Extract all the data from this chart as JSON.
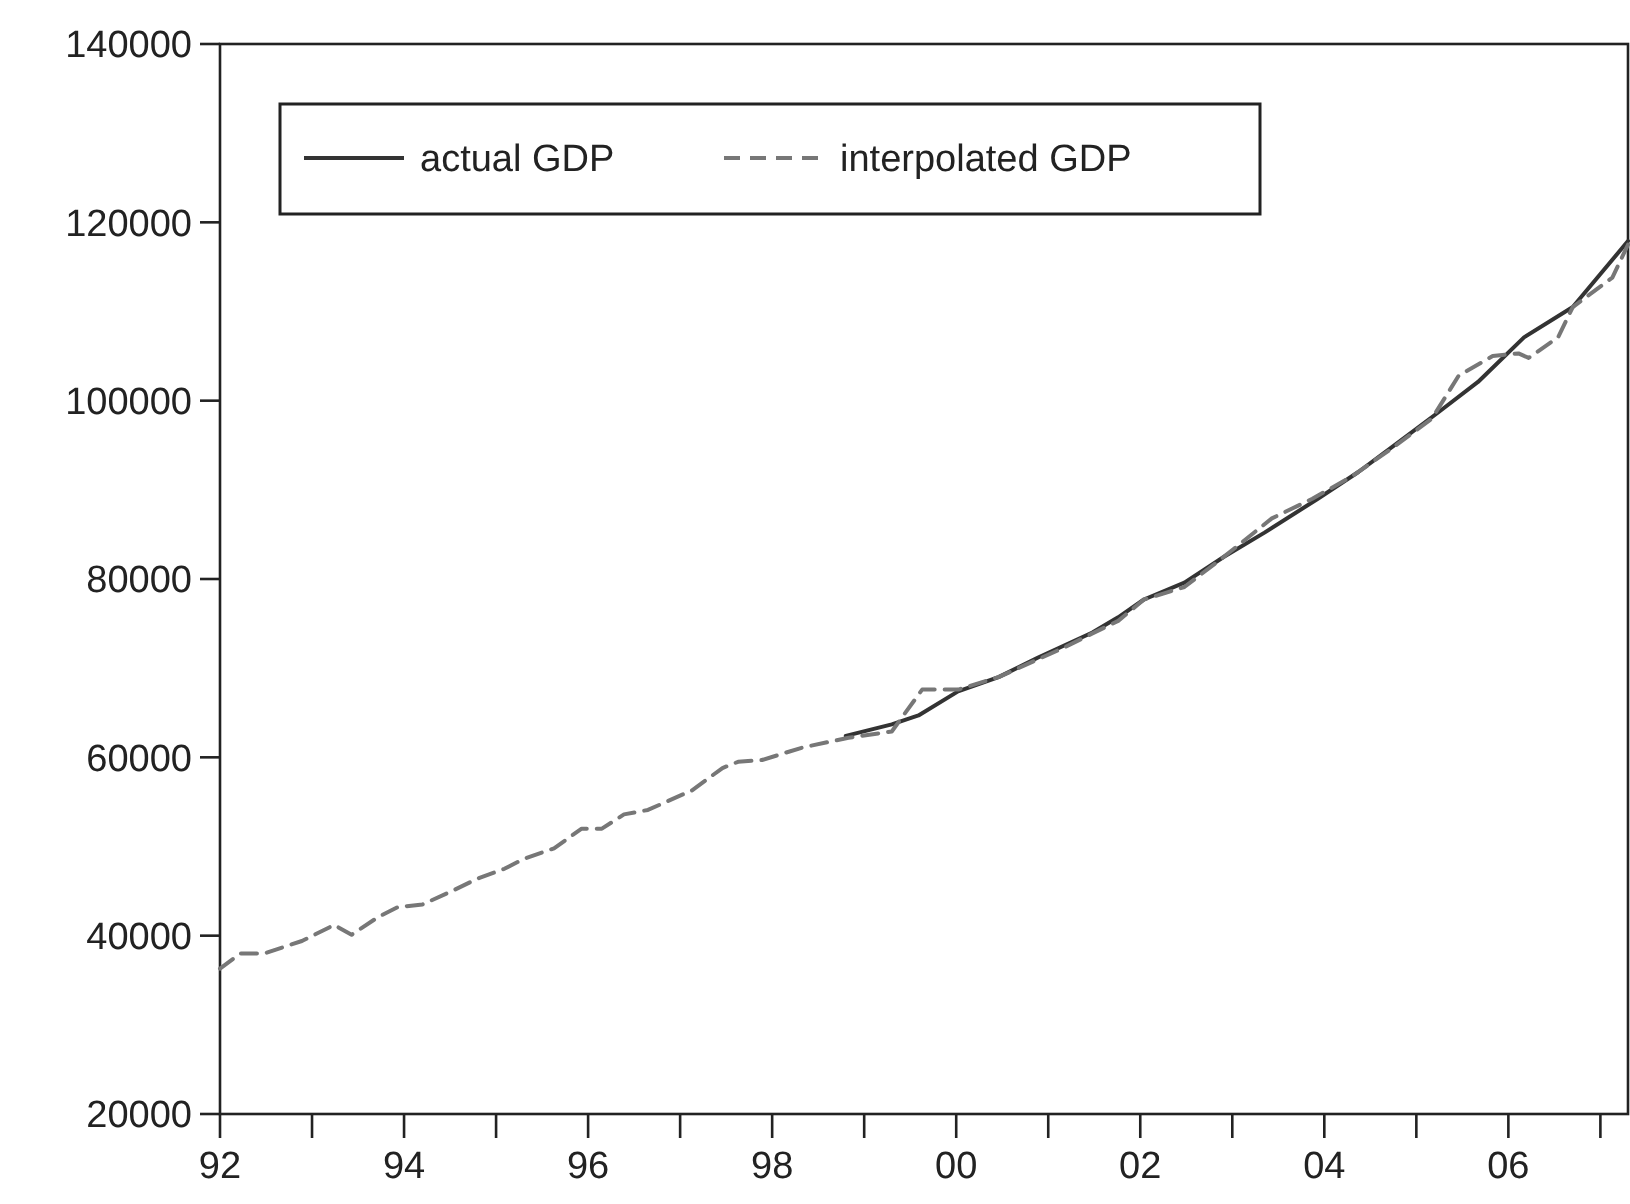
{
  "chart_data": {
    "type": "line",
    "xlim": [
      1992,
      2007.3
    ],
    "xticks": [
      {
        "value": 1992,
        "label": "92"
      },
      {
        "value": 1993,
        "label": null
      },
      {
        "value": 1994,
        "label": "94"
      },
      {
        "value": 1995,
        "label": null
      },
      {
        "value": 1996,
        "label": "96"
      },
      {
        "value": 1997,
        "label": null
      },
      {
        "value": 1998,
        "label": "98"
      },
      {
        "value": 1999,
        "label": null
      },
      {
        "value": 2000,
        "label": "00"
      },
      {
        "value": 2001,
        "label": null
      },
      {
        "value": 2002,
        "label": "02"
      },
      {
        "value": 2003,
        "label": null
      },
      {
        "value": 2004,
        "label": "04"
      },
      {
        "value": 2005,
        "label": null
      },
      {
        "value": 2006,
        "label": "06"
      },
      {
        "value": 2007,
        "label": null
      }
    ],
    "ylim": [
      20000,
      140000
    ],
    "yticks": [
      20000,
      40000,
      60000,
      80000,
      100000,
      120000,
      140000
    ],
    "grid": false,
    "legend": "top left",
    "series": [
      {
        "name": "actual GDP",
        "color": "#333333",
        "line_style": "solid",
        "x": [
          1998.8,
          1999.3,
          1999.59,
          2000.02,
          2000.46,
          2000.89,
          2001.48,
          2001.76,
          2002.04,
          2002.48,
          2002.91,
          2003.35,
          2003.93,
          2004.37,
          2004.8,
          2005.24,
          2005.67,
          2006.17,
          2006.7,
          2007.3
        ],
        "values": [
          62400,
          63700,
          64700,
          67400,
          69000,
          71200,
          74000,
          75700,
          77700,
          79600,
          82500,
          85200,
          89000,
          92000,
          95300,
          98700,
          102100,
          107100,
          110500,
          117900
        ]
      },
      {
        "name": "interpolated GDP",
        "color": "#777777",
        "line_style": "dashed",
        "x": [
          1992,
          1992.22,
          1992.48,
          1992.89,
          1993.24,
          1993.43,
          1993.72,
          1993.93,
          1994.2,
          1994.52,
          1994.8,
          1995.09,
          1995.3,
          1995.63,
          1995.93,
          1996.15,
          1996.39,
          1996.65,
          1997.13,
          1997.46,
          1997.63,
          1997.89,
          1998.33,
          1998.83,
          1999.3,
          1999.63,
          2000.02,
          2000.46,
          2000.89,
          2001.17,
          2001.48,
          2001.76,
          2002.04,
          2002.48,
          2002.91,
          2003.43,
          2003.87,
          2004.3,
          2004.74,
          2005.17,
          2005.46,
          2005.83,
          2006.11,
          2006.22,
          2006.54,
          2006.7,
          2007.13,
          2007.3
        ],
        "values": [
          36300,
          38000,
          38000,
          39400,
          41200,
          40100,
          42100,
          43200,
          43500,
          45000,
          46400,
          47500,
          48600,
          49800,
          52000,
          52000,
          53600,
          54100,
          56300,
          58800,
          59500,
          59700,
          61100,
          62200,
          62900,
          67600,
          67600,
          69000,
          71000,
          72300,
          73900,
          75300,
          77700,
          79100,
          82500,
          86800,
          89000,
          91500,
          94700,
          98000,
          102800,
          105000,
          105300,
          104800,
          107100,
          110500,
          113800,
          117500
        ]
      }
    ]
  }
}
